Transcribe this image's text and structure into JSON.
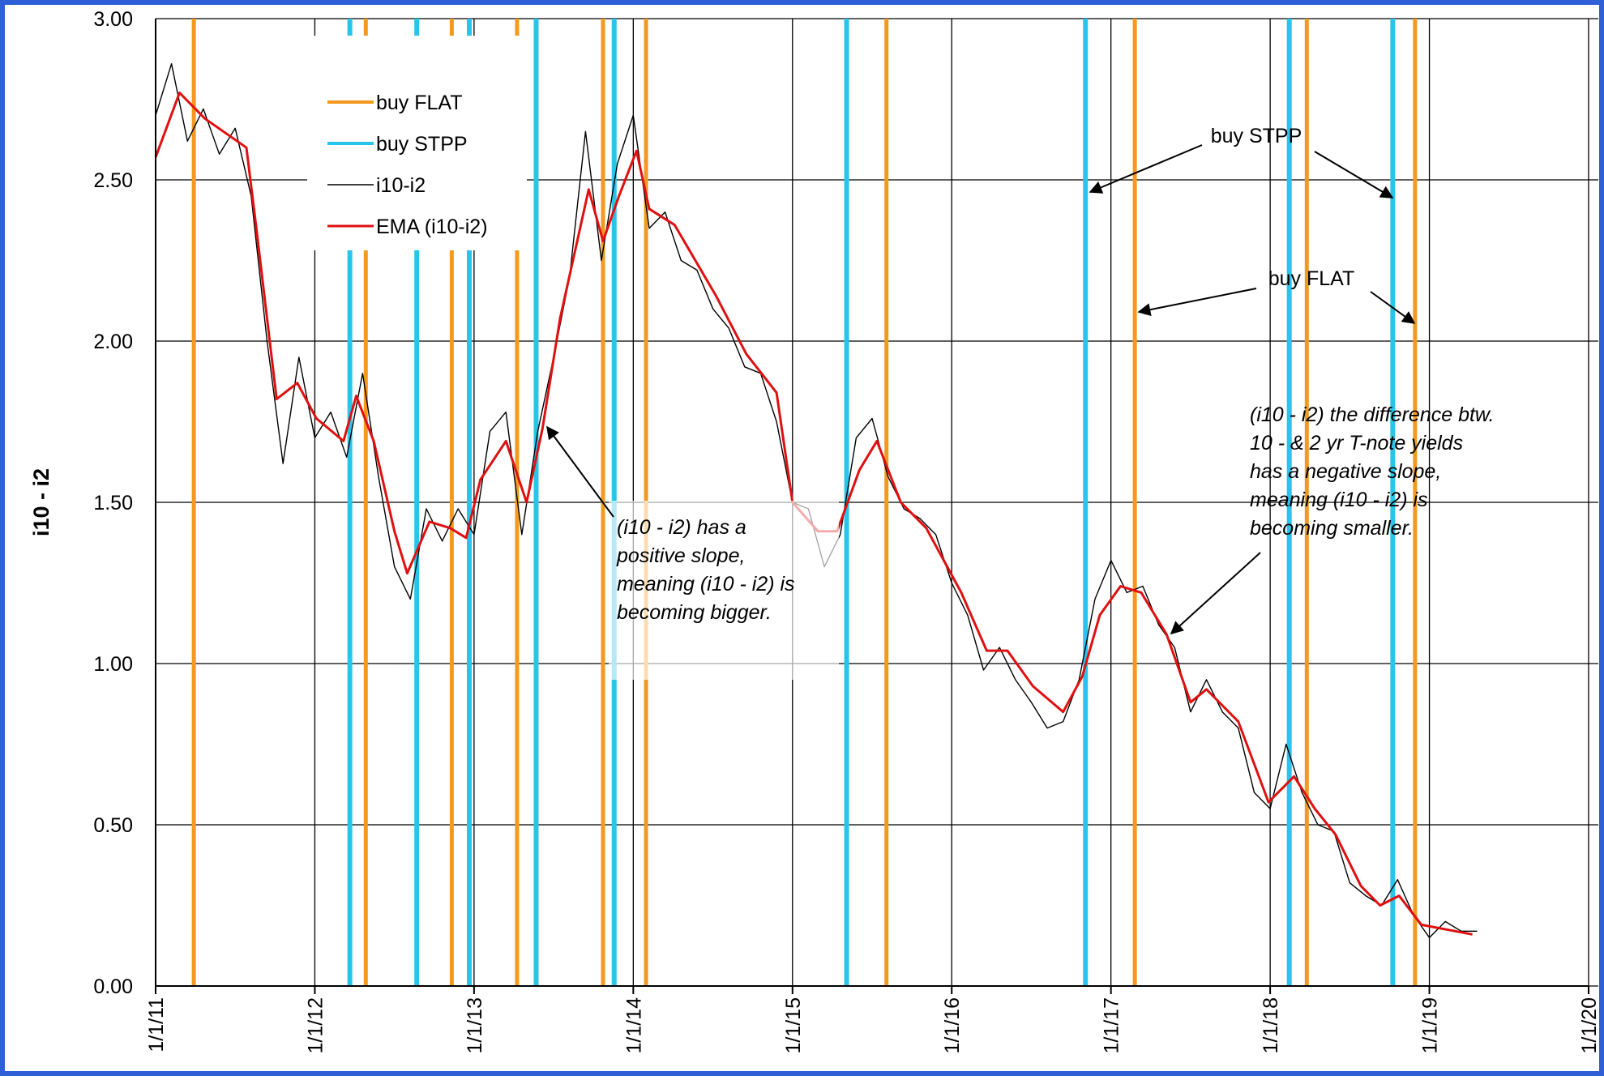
{
  "chart_data": {
    "type": "line",
    "y_label": "i10 - i2",
    "xlim": [
      2011,
      2020
    ],
    "xticks": [
      {
        "value": 2011,
        "label": "1/1/11"
      },
      {
        "value": 2012,
        "label": "1/1/12"
      },
      {
        "value": 2013,
        "label": "1/1/13"
      },
      {
        "value": 2014,
        "label": "1/1/14"
      },
      {
        "value": 2015,
        "label": "1/1/15"
      },
      {
        "value": 2016,
        "label": "1/1/16"
      },
      {
        "value": 2017,
        "label": "1/1/17"
      },
      {
        "value": 2018,
        "label": "1/1/18"
      },
      {
        "value": 2019,
        "label": "1/1/19"
      },
      {
        "value": 2020,
        "label": "1/1/20"
      }
    ],
    "ylim": [
      0,
      3
    ],
    "yticks": [
      {
        "value": 0,
        "label": "0.00"
      },
      {
        "value": 0.5,
        "label": "0.50"
      },
      {
        "value": 1,
        "label": "1.00"
      },
      {
        "value": 1.5,
        "label": "1.50"
      },
      {
        "value": 2,
        "label": "2.00"
      },
      {
        "value": 2.5,
        "label": "2.50"
      },
      {
        "value": 3,
        "label": "3.00"
      }
    ],
    "grid": true,
    "series": [
      {
        "name": "buy FLAT",
        "color": "#f39a1e",
        "mark": "vline",
        "x": [
          2011.24,
          2012.32,
          2012.86,
          2013.27,
          2013.81,
          2014.08,
          2015.59,
          2017.15,
          2018.23,
          2018.91
        ]
      },
      {
        "name": "buy STPP",
        "color": "#29c4ec",
        "mark": "vline",
        "x": [
          2012.22,
          2012.64,
          2012.97,
          2013.39,
          2013.88,
          2015.34,
          2016.84,
          2018.12,
          2018.77
        ]
      },
      {
        "name": "i10-i2",
        "color": "#000000",
        "mark": "line",
        "x": [
          2011.0,
          2011.1,
          2011.2,
          2011.3,
          2011.4,
          2011.5,
          2011.6,
          2011.7,
          2011.8,
          2011.9,
          2012.0,
          2012.1,
          2012.2,
          2012.3,
          2012.4,
          2012.5,
          2012.6,
          2012.7,
          2012.8,
          2012.9,
          2013.0,
          2013.1,
          2013.2,
          2013.3,
          2013.4,
          2013.5,
          2013.6,
          2013.7,
          2013.8,
          2013.9,
          2014.0,
          2014.1,
          2014.2,
          2014.3,
          2014.4,
          2014.5,
          2014.6,
          2014.7,
          2014.8,
          2014.9,
          2015.0,
          2015.1,
          2015.2,
          2015.3,
          2015.4,
          2015.5,
          2015.6,
          2015.7,
          2015.8,
          2015.9,
          2016.0,
          2016.1,
          2016.2,
          2016.3,
          2016.4,
          2016.5,
          2016.6,
          2016.7,
          2016.8,
          2016.9,
          2017.0,
          2017.1,
          2017.2,
          2017.3,
          2017.4,
          2017.5,
          2017.6,
          2017.7,
          2017.8,
          2017.9,
          2018.0,
          2018.1,
          2018.2,
          2018.3,
          2018.4,
          2018.5,
          2018.6,
          2018.7,
          2018.8,
          2018.9,
          2019.0,
          2019.1,
          2019.2,
          2019.3
        ],
        "values": [
          2.7,
          2.86,
          2.62,
          2.72,
          2.58,
          2.66,
          2.45,
          2.0,
          1.62,
          1.95,
          1.7,
          1.78,
          1.64,
          1.9,
          1.58,
          1.3,
          1.2,
          1.48,
          1.38,
          1.48,
          1.4,
          1.72,
          1.78,
          1.4,
          1.72,
          1.95,
          2.2,
          2.65,
          2.25,
          2.55,
          2.7,
          2.35,
          2.4,
          2.25,
          2.22,
          2.1,
          2.04,
          1.92,
          1.9,
          1.75,
          1.5,
          1.48,
          1.3,
          1.4,
          1.7,
          1.76,
          1.58,
          1.48,
          1.45,
          1.4,
          1.25,
          1.15,
          0.98,
          1.05,
          0.95,
          0.88,
          0.8,
          0.82,
          0.95,
          1.2,
          1.32,
          1.22,
          1.24,
          1.12,
          1.05,
          0.85,
          0.95,
          0.85,
          0.8,
          0.6,
          0.55,
          0.75,
          0.6,
          0.5,
          0.48,
          0.32,
          0.28,
          0.25,
          0.33,
          0.22,
          0.15,
          0.2,
          0.17,
          0.17
        ]
      },
      {
        "name": "EMA (i10-i2)",
        "color": "#e01010",
        "mark": "line",
        "x": [
          2011.0,
          2011.15,
          2011.31,
          2011.57,
          2011.63,
          2011.76,
          2011.89,
          2012.01,
          2012.18,
          2012.26,
          2012.37,
          2012.5,
          2012.58,
          2012.72,
          2012.85,
          2012.95,
          2013.04,
          2013.2,
          2013.33,
          2013.43,
          2013.54,
          2013.72,
          2013.81,
          2013.91,
          2014.02,
          2014.1,
          2014.26,
          2014.52,
          2014.71,
          2014.9,
          2015.0,
          2015.16,
          2015.28,
          2015.42,
          2015.53,
          2015.68,
          2015.84,
          2016.06,
          2016.22,
          2016.35,
          2016.51,
          2016.7,
          2016.82,
          2016.93,
          2017.06,
          2017.19,
          2017.35,
          2017.5,
          2017.6,
          2017.8,
          2017.99,
          2018.15,
          2018.28,
          2018.41,
          2018.57,
          2018.69,
          2018.81,
          2018.95,
          2019.27
        ],
        "values": [
          2.57,
          2.77,
          2.69,
          2.6,
          2.36,
          1.82,
          1.87,
          1.76,
          1.69,
          1.83,
          1.69,
          1.41,
          1.28,
          1.44,
          1.42,
          1.39,
          1.57,
          1.69,
          1.5,
          1.73,
          2.07,
          2.47,
          2.31,
          2.45,
          2.59,
          2.41,
          2.36,
          2.14,
          1.96,
          1.84,
          1.5,
          1.41,
          1.41,
          1.6,
          1.69,
          1.5,
          1.42,
          1.22,
          1.04,
          1.04,
          0.93,
          0.85,
          0.96,
          1.15,
          1.24,
          1.22,
          1.09,
          0.88,
          0.92,
          0.82,
          0.57,
          0.65,
          0.55,
          0.47,
          0.31,
          0.25,
          0.28,
          0.19,
          0.16
        ]
      }
    ],
    "annotations": [
      {
        "text": "buy STPP"
      },
      {
        "text": "buy FLAT"
      },
      {
        "lines": [
          "(i10 - i2)   has a",
          "positive slope,",
          "meaning (i10 - i2) is",
          "becoming  bigger."
        ]
      },
      {
        "lines": [
          "(i10 - i2) the difference  btw.",
          "10 - & 2 yr T-note  yields",
          "has a negative slope,",
          "meaning (i10 - i2) is",
          "becoming  smaller."
        ]
      }
    ]
  }
}
